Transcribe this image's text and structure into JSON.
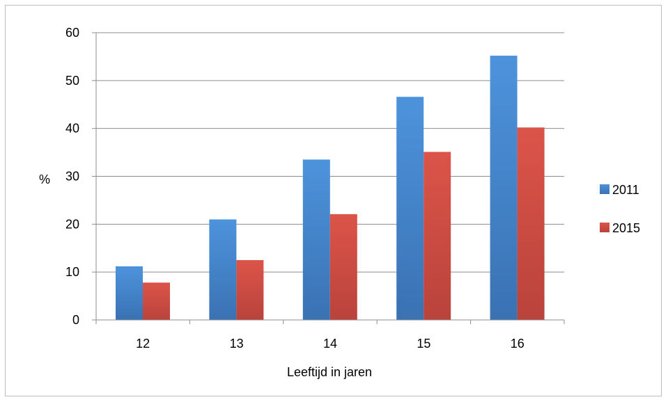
{
  "chart_data": {
    "type": "bar",
    "title": "",
    "xlabel": "Leeftijd in jaren",
    "ylabel": "%",
    "categories": [
      "12",
      "13",
      "14",
      "15",
      "16"
    ],
    "series": [
      {
        "name": "2011",
        "values": [
          11.2,
          21.0,
          33.5,
          46.6,
          55.2
        ],
        "color": "#4a8fd8"
      },
      {
        "name": "2015",
        "values": [
          7.8,
          12.5,
          22.1,
          35.1,
          40.2
        ],
        "color": "#d9534a"
      }
    ],
    "ylim": [
      0,
      60
    ],
    "yticks": [
      "0",
      "10",
      "20",
      "30",
      "40",
      "50",
      "60"
    ],
    "grid": true,
    "legend_position": "right"
  }
}
